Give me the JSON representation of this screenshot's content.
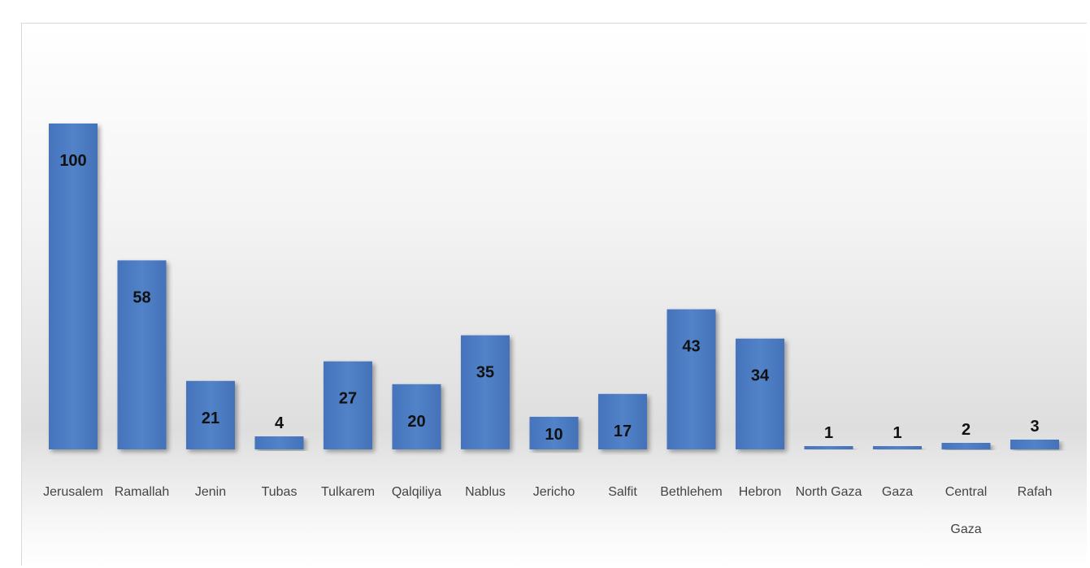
{
  "chart_data": {
    "type": "bar",
    "title": "",
    "xlabel": "",
    "ylabel": "",
    "ylim": [
      0,
      100
    ],
    "grid": false,
    "legend": "none",
    "bar_color": "#4F7BBF",
    "categories": [
      [
        "Jerusalem"
      ],
      [
        "Ramallah"
      ],
      [
        "Jenin"
      ],
      [
        "Tubas"
      ],
      [
        "Tulkarem"
      ],
      [
        "Qalqiliya"
      ],
      [
        "Nablus"
      ],
      [
        "Jericho"
      ],
      [
        "Salfit"
      ],
      [
        "Bethlehem"
      ],
      [
        "Hebron"
      ],
      [
        "North Gaza"
      ],
      [
        "Gaza"
      ],
      [
        "Central",
        "Gaza"
      ],
      [
        "Rafah"
      ]
    ],
    "values": [
      100,
      58,
      21,
      4,
      27,
      20,
      35,
      10,
      17,
      43,
      34,
      1,
      1,
      2,
      3
    ]
  }
}
